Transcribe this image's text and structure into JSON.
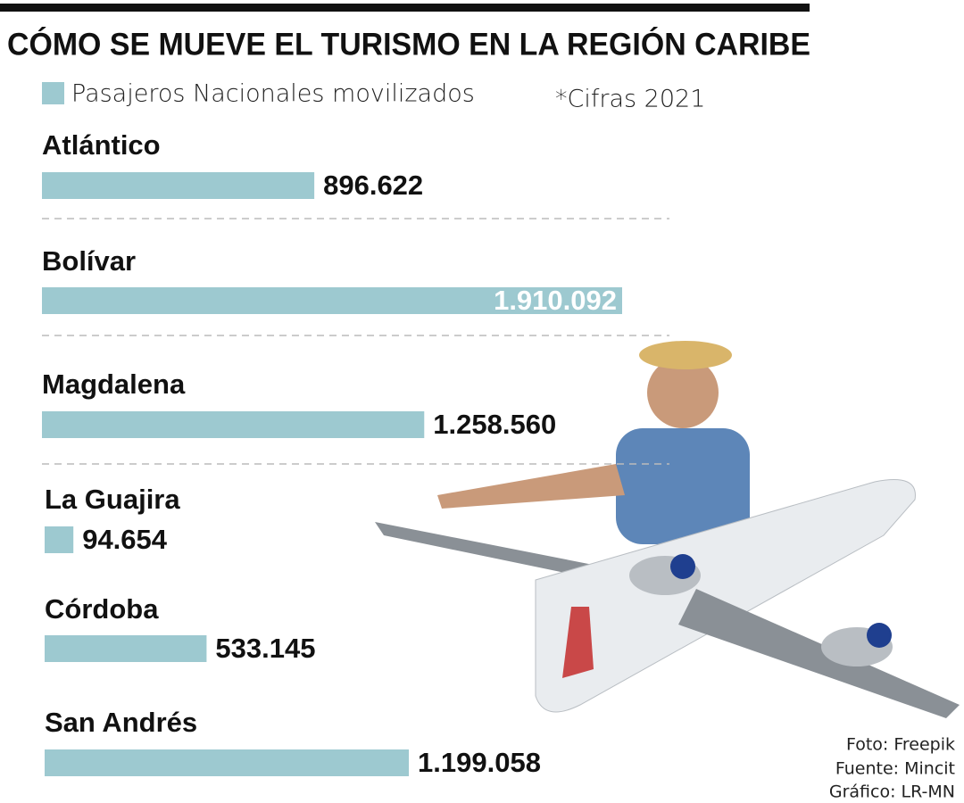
{
  "chart_data": {
    "type": "bar",
    "title": "CÓMO SE MUEVE EL TURISMO EN LA REGIÓN CARIBE",
    "note": "*Cifras 2021",
    "categories": [
      "Atlántico",
      "Bolívar",
      "Magdalena",
      "La Guajira",
      "Córdoba",
      "San Andrés"
    ],
    "series": [
      {
        "name": "Pasajeros Nacionales movilizados",
        "color": "#9dc9d0",
        "values": [
          896622,
          1910092,
          1258560,
          94654,
          533145,
          1199058
        ],
        "value_labels": [
          "896.622",
          "1.910.092",
          "1.258.560",
          "94.654",
          "533.145",
          "1.199.058"
        ]
      }
    ],
    "credits": [
      "Foto: Freepik",
      "Fuente: Mincit",
      "Gráfico: LR-MN"
    ]
  }
}
